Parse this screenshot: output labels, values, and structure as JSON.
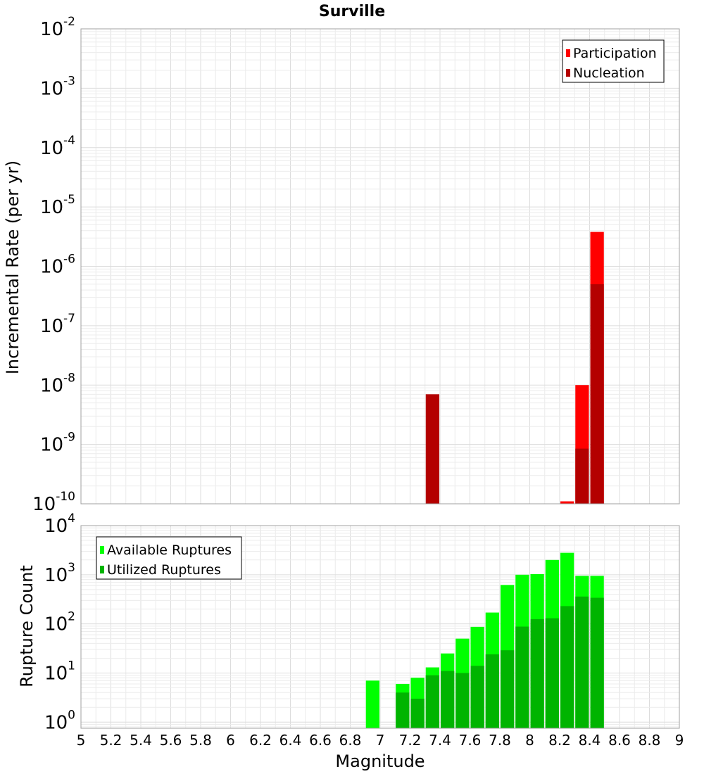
{
  "chart_data": [
    {
      "id": "rates",
      "type": "bar",
      "title": "Surville",
      "ylabel": "Incremental Rate (per yr)",
      "xlabel": "",
      "yscale": "log",
      "ylim": [
        1e-10,
        0.01
      ],
      "xlim": [
        5,
        9
      ],
      "legend": {
        "position": "top-right"
      },
      "series": [
        {
          "name": "Participation",
          "color": "#ff0000",
          "x": [
            8.25,
            8.35,
            8.45
          ],
          "values": [
            1.1e-10,
            1e-08,
            3.8e-06
          ]
        },
        {
          "name": "Nucleation",
          "color": "#b40000",
          "x": [
            7.35,
            8.35,
            8.45
          ],
          "values": [
            7e-09,
            8.5e-10,
            5e-07
          ]
        }
      ]
    },
    {
      "id": "counts",
      "type": "bar",
      "ylabel": "Rupture Count",
      "xlabel": "Magnitude",
      "yscale": "log",
      "ylim": [
        0.75,
        10000
      ],
      "xlim": [
        5,
        9
      ],
      "xticks": [
        "5",
        "5.2",
        "5.4",
        "5.6",
        "5.8",
        "6",
        "6.2",
        "6.4",
        "6.6",
        "6.8",
        "7",
        "7.2",
        "7.4",
        "7.6",
        "7.8",
        "8",
        "8.2",
        "8.4",
        "8.6",
        "8.8",
        "9"
      ],
      "legend": {
        "position": "top-left"
      },
      "series": [
        {
          "name": "Available Ruptures",
          "color": "#00ff00",
          "x": [
            6.95,
            7.15,
            7.25,
            7.35,
            7.45,
            7.55,
            7.65,
            7.75,
            7.85,
            7.95,
            8.05,
            8.15,
            8.25,
            8.35,
            8.45
          ],
          "values": [
            7,
            6,
            8,
            13,
            25,
            50,
            87,
            170,
            620,
            1000,
            1030,
            2000,
            2800,
            950,
            950
          ]
        },
        {
          "name": "Utilized Ruptures",
          "color": "#00b400",
          "x": [
            7.15,
            7.25,
            7.35,
            7.45,
            7.55,
            7.65,
            7.75,
            7.85,
            7.95,
            8.05,
            8.15,
            8.25,
            8.35,
            8.45
          ],
          "values": [
            4,
            3,
            9,
            11,
            10,
            14,
            24,
            29,
            88,
            125,
            130,
            230,
            360,
            340
          ]
        }
      ]
    }
  ]
}
